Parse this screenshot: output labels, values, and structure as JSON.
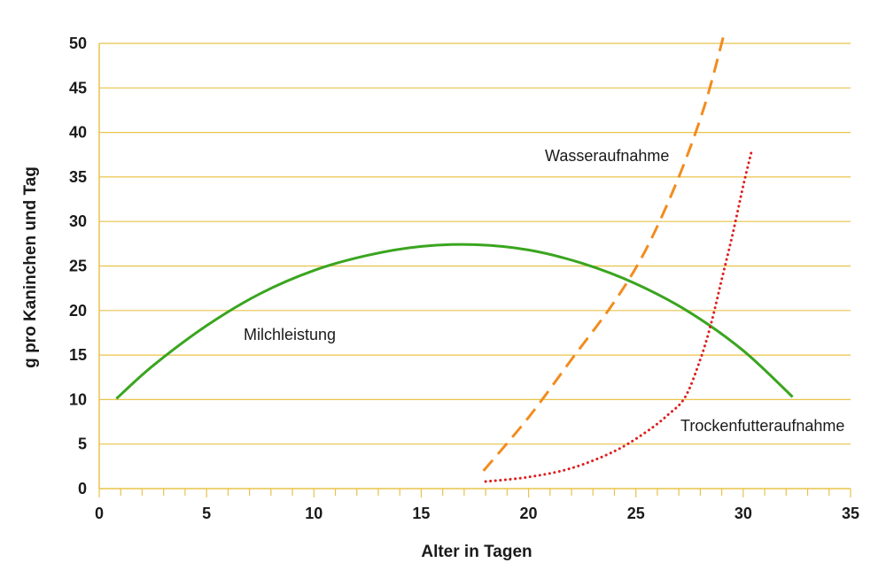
{
  "chart_data": {
    "type": "line",
    "title": "",
    "xlabel": "Alter in Tagen",
    "ylabel": "g pro Kaninchen und Tag",
    "xlim": [
      0,
      35
    ],
    "ylim": [
      0,
      50
    ],
    "xticks": [
      0,
      5,
      10,
      15,
      20,
      25,
      30,
      35
    ],
    "yticks": [
      0,
      5,
      10,
      15,
      20,
      25,
      30,
      35,
      40,
      45,
      50
    ],
    "x_minor_step": 1,
    "grid": "horizontal",
    "grid_color": "#e8c34a",
    "axis_color": "#e8c34a",
    "legend": "none (series labelled inline)",
    "series": [
      {
        "name": "Milchleistung",
        "color": "#3aa51f",
        "style": "solid",
        "x": [
          0.8,
          2.5,
          5,
          7.5,
          10,
          12.5,
          15,
          17.5,
          20,
          22.5,
          25,
          27.5,
          30,
          32.3
        ],
        "y": [
          10.1,
          13.8,
          18.3,
          21.9,
          24.5,
          26.2,
          27.2,
          27.4,
          26.8,
          25.3,
          23.0,
          19.8,
          15.5,
          10.3
        ]
      },
      {
        "name": "Wasseraufnahme",
        "color": "#f28c1e",
        "style": "dashed",
        "x": [
          17.9,
          20,
          22,
          24,
          25.5,
          27,
          28.2,
          29.1
        ],
        "y": [
          2.0,
          8.0,
          14.5,
          21.0,
          27.0,
          35.0,
          43.0,
          51.0
        ]
      },
      {
        "name": "Trockenfutteraufnahme",
        "color": "#dd1f1f",
        "style": "dotted",
        "x": [
          18,
          20,
          22,
          24,
          25.5,
          26.5,
          27.3,
          28,
          28.5,
          29,
          29.5,
          30,
          30.4
        ],
        "y": [
          0.8,
          1.3,
          2.3,
          4.2,
          6.4,
          8.3,
          10.3,
          14.5,
          18.5,
          23.5,
          28.5,
          34.0,
          38.0
        ]
      }
    ]
  }
}
